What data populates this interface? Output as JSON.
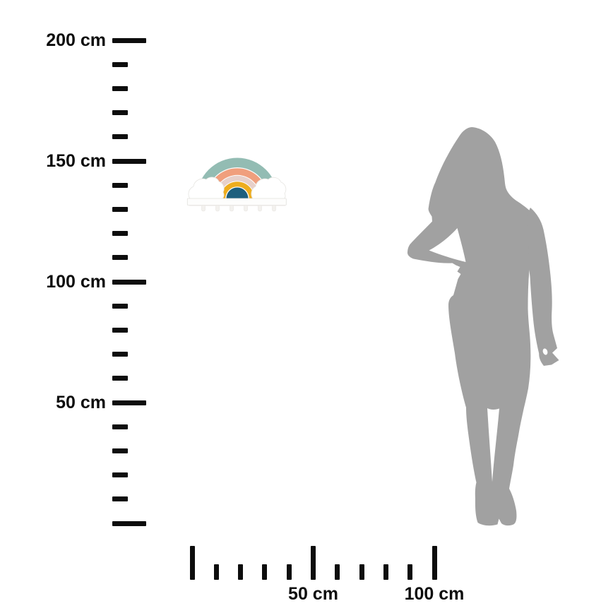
{
  "scene": {
    "type": "product size comparison diagram",
    "background_color": "#ffffff"
  },
  "vertical_ruler": {
    "unit": "cm",
    "range_cm": [
      0,
      200
    ],
    "minor_interval_cm": 10,
    "major_interval_cm": 50,
    "labels": [
      "200 cm",
      "150 cm",
      "100 cm",
      "50 cm"
    ],
    "color": "#0d0d0d"
  },
  "horizontal_ruler": {
    "unit": "cm",
    "range_cm": [
      0,
      100
    ],
    "minor_interval_cm": 10,
    "major_interval_cm": 50,
    "labels": [
      "50 cm",
      "100 cm"
    ],
    "color": "#0d0d0d"
  },
  "product": {
    "name": "rainbow cloud wall shelf",
    "colors": {
      "arc_outer_teal": "#93bcb3",
      "arc_coral": "#f09f7d",
      "arc_pink": "#e7d0ca",
      "arc_mustard": "#eead1e",
      "arc_center_petrol": "#1d5f7e",
      "cloud_fill": "#ffffff",
      "cloud_edge": "#e6e5e1",
      "shelf_fill": "#fdfdfc",
      "shelf_edge": "#e2e1dd",
      "peg_fill": "#f3f1ee",
      "peg_edge": "#e7e5e1",
      "shelf_shadow": "#eceae6"
    }
  },
  "figure": {
    "name": "woman silhouette",
    "pose": "standing, hand on hip",
    "color": "#a1a1a1"
  }
}
